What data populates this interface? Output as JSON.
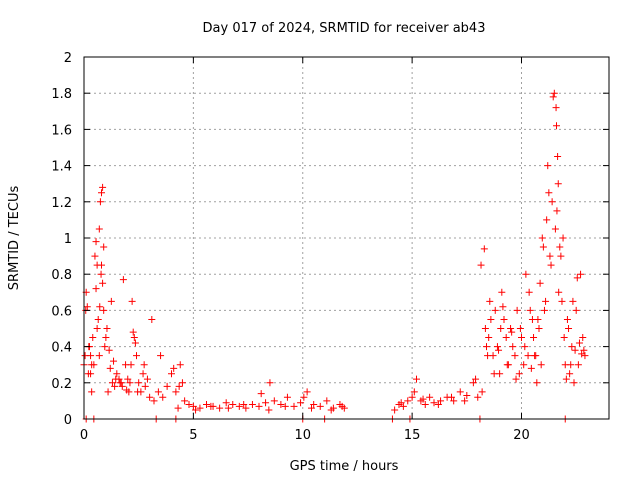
{
  "chart_data": {
    "type": "scatter",
    "title": "Day 017 of 2024, SRMTID for receiver ab43",
    "xlabel": "GPS time / hours",
    "ylabel": "SRMTID / TECUs",
    "xlim": [
      0,
      24
    ],
    "ylim": [
      0,
      2
    ],
    "x_ticks": [
      0,
      5,
      10,
      15,
      20
    ],
    "x_tick_labels": [
      "0",
      "5",
      "10",
      "15",
      "20"
    ],
    "y_ticks": [
      0,
      0.2,
      0.4,
      0.6,
      0.8,
      1,
      1.2,
      1.4,
      1.6,
      1.8,
      2
    ],
    "y_tick_labels": [
      "0",
      "0.2",
      "0.4",
      "0.6",
      "0.8",
      "1",
      "1.2",
      "1.4",
      "1.6",
      "1.8",
      "2"
    ],
    "grid": true,
    "marker": "plus",
    "marker_color": "#ff0000",
    "series": [
      {
        "name": "SRMTID",
        "x": [
          0.0,
          0.05,
          0.1,
          0.15,
          0.2,
          0.25,
          0.3,
          0.35,
          0.4,
          0.45,
          0.5,
          0.55,
          0.6,
          0.65,
          0.7,
          0.75,
          0.8,
          0.85,
          0.9,
          0.95,
          1.0,
          1.1,
          1.2,
          1.3,
          1.4,
          1.5,
          1.6,
          1.7,
          1.8,
          1.9,
          2.0,
          2.05,
          2.1,
          2.2,
          2.3,
          2.4,
          2.5,
          2.6,
          2.7,
          2.8,
          2.9,
          3.0,
          3.2,
          3.4,
          3.6,
          3.8,
          4.0,
          4.2,
          4.4,
          4.5,
          4.6,
          4.8,
          5.0,
          5.3,
          5.6,
          5.9,
          6.2,
          6.5,
          6.8,
          7.1,
          7.4,
          7.7,
          8.0,
          8.3,
          8.5,
          8.7,
          9.0,
          9.3,
          9.6,
          9.9,
          10.2,
          10.5,
          10.8,
          11.1,
          11.4,
          11.7,
          11.9,
          14.2,
          14.4,
          14.6,
          14.8,
          15.0,
          15.2,
          15.4,
          15.6,
          15.8,
          16.0,
          16.3,
          16.6,
          16.9,
          17.2,
          17.5,
          17.8,
          18.0,
          18.2,
          18.3,
          18.4,
          18.5,
          18.6,
          18.7,
          18.8,
          18.9,
          19.0,
          19.1,
          19.2,
          19.3,
          19.4,
          19.5,
          19.6,
          19.7,
          19.8,
          19.9,
          20.0,
          20.1,
          20.2,
          20.3,
          20.4,
          20.5,
          20.6,
          20.7,
          20.8,
          20.9,
          21.0,
          21.1,
          21.2,
          21.3,
          21.4,
          21.5,
          21.55,
          21.6,
          21.65,
          21.7,
          21.8,
          21.9,
          22.0,
          22.1,
          22.2,
          22.3,
          22.4,
          22.5,
          22.6,
          22.7,
          22.8,
          22.9,
          0.08,
          0.22,
          0.35,
          0.6,
          0.7,
          0.8,
          0.9,
          1.05,
          1.25,
          1.45,
          1.75,
          2.15,
          2.35,
          3.1,
          3.5,
          4.1,
          4.35,
          0.3,
          0.55,
          0.72,
          0.78,
          0.85,
          1.15,
          1.35,
          1.65,
          1.95,
          2.25,
          2.45,
          2.75,
          4.3,
          5.1,
          5.8,
          6.6,
          7.3,
          8.1,
          8.45,
          9.2,
          10.05,
          10.4,
          11.3,
          11.8,
          14.5,
          15.1,
          15.5,
          16.2,
          16.8,
          17.4,
          17.9,
          18.15,
          18.35,
          18.45,
          18.55,
          18.75,
          18.95,
          19.05,
          19.15,
          19.35,
          19.55,
          19.75,
          19.95,
          20.15,
          20.35,
          20.45,
          20.55,
          20.65,
          20.75,
          20.85,
          20.95,
          21.05,
          21.15,
          21.25,
          21.35,
          21.45,
          21.58,
          21.62,
          21.68,
          21.75,
          21.85,
          21.95,
          22.05,
          22.15,
          22.25,
          22.35,
          22.45,
          22.55,
          22.65,
          22.75,
          22.85,
          0.1,
          0.45,
          3.3,
          4.2,
          10.0,
          11.0,
          14.1,
          14.9,
          18.1,
          22.0
        ],
        "y": [
          0.3,
          0.35,
          0.7,
          0.62,
          0.25,
          0.4,
          0.35,
          0.15,
          0.45,
          0.3,
          0.9,
          0.98,
          0.85,
          0.55,
          1.05,
          1.2,
          1.25,
          0.75,
          0.6,
          0.4,
          0.45,
          0.15,
          0.28,
          0.2,
          0.18,
          0.25,
          0.22,
          0.2,
          0.77,
          0.3,
          0.22,
          0.15,
          0.2,
          0.65,
          0.45,
          0.35,
          0.2,
          0.15,
          0.25,
          0.18,
          0.22,
          0.12,
          0.1,
          0.15,
          0.12,
          0.18,
          0.25,
          0.15,
          0.3,
          0.2,
          0.1,
          0.08,
          0.07,
          0.06,
          0.08,
          0.07,
          0.06,
          0.09,
          0.08,
          0.07,
          0.06,
          0.08,
          0.07,
          0.09,
          0.2,
          0.1,
          0.08,
          0.12,
          0.07,
          0.09,
          0.15,
          0.08,
          0.07,
          0.1,
          0.06,
          0.08,
          0.06,
          0.05,
          0.08,
          0.07,
          0.1,
          0.12,
          0.22,
          0.1,
          0.08,
          0.12,
          0.09,
          0.1,
          0.12,
          0.1,
          0.15,
          0.13,
          0.2,
          0.12,
          0.15,
          0.94,
          0.4,
          0.45,
          0.55,
          0.35,
          0.6,
          0.4,
          0.25,
          0.7,
          0.55,
          0.45,
          0.3,
          0.5,
          0.4,
          0.35,
          0.6,
          0.25,
          0.45,
          0.3,
          0.8,
          0.35,
          0.6,
          0.55,
          0.35,
          0.2,
          0.5,
          0.3,
          0.95,
          0.65,
          1.4,
          0.9,
          1.2,
          1.8,
          1.05,
          1.62,
          1.45,
          0.7,
          0.9,
          1.0,
          0.3,
          0.55,
          0.25,
          0.4,
          0.2,
          0.6,
          0.3,
          0.8,
          0.45,
          0.35,
          0.6,
          0.4,
          0.3,
          0.5,
          0.35,
          0.85,
          0.95,
          0.5,
          0.65,
          0.22,
          0.18,
          0.3,
          0.42,
          0.55,
          0.35,
          0.28,
          0.18,
          0.25,
          0.72,
          0.62,
          0.8,
          1.28,
          0.38,
          0.32,
          0.2,
          0.16,
          0.48,
          0.15,
          0.3,
          0.06,
          0.05,
          0.07,
          0.06,
          0.08,
          0.14,
          0.05,
          0.07,
          0.12,
          0.06,
          0.05,
          0.07,
          0.09,
          0.15,
          0.11,
          0.08,
          0.12,
          0.1,
          0.22,
          0.85,
          0.5,
          0.35,
          0.65,
          0.25,
          0.38,
          0.5,
          0.62,
          0.3,
          0.48,
          0.22,
          0.5,
          0.4,
          0.7,
          0.28,
          0.45,
          0.35,
          0.55,
          0.75,
          1.0,
          0.6,
          1.1,
          1.25,
          0.85,
          1.78,
          1.72,
          1.15,
          1.3,
          0.95,
          0.65,
          0.45,
          0.22,
          0.5,
          0.3,
          0.65,
          0.38,
          0.78,
          0.42,
          0.36,
          0.38,
          0.0,
          0.0,
          0.0,
          0.0,
          0.0,
          0.0,
          0.0,
          0.0,
          0.0,
          0.0
        ]
      }
    ]
  }
}
